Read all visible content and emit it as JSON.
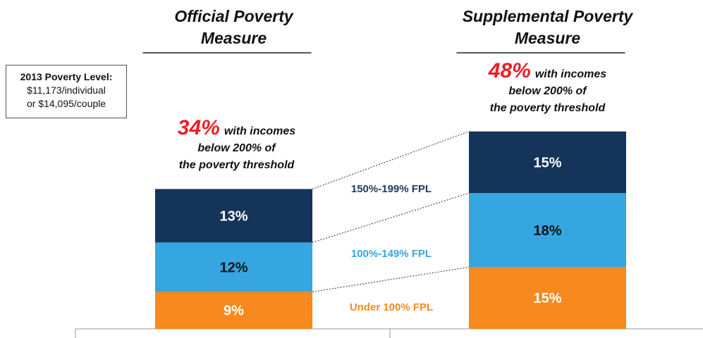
{
  "chart_data": {
    "type": "bar",
    "stacked": true,
    "categories": [
      "Official Poverty Measure",
      "Supplemental Poverty Measure"
    ],
    "series": [
      {
        "name": "Under 100% FPL",
        "color": "#f7891f",
        "label_color": "#ffffff",
        "values": [
          9,
          15
        ],
        "value_labels": [
          "9%",
          "15%"
        ]
      },
      {
        "name": "100%-149% FPL",
        "color": "#35a6e0",
        "label_color": "#111111",
        "values": [
          12,
          18
        ],
        "value_labels": [
          "12%",
          "18%"
        ]
      },
      {
        "name": "150%-199% FPL",
        "color": "#14345a",
        "label_color": "#ffffff",
        "values": [
          13,
          15
        ],
        "value_labels": [
          "13%",
          "15%"
        ]
      }
    ],
    "legend_colors": [
      "#f7891f",
      "#35a6e0",
      "#1f3b63"
    ],
    "totals": [
      34,
      48
    ],
    "total_labels": [
      "34%",
      "48%"
    ],
    "total_annotation": [
      "with incomes",
      "below 200% of",
      "the poverty threshold"
    ],
    "note": [
      "2013 Poverty Level:",
      "$11,173/individual",
      "or $14,095/couple"
    ]
  }
}
